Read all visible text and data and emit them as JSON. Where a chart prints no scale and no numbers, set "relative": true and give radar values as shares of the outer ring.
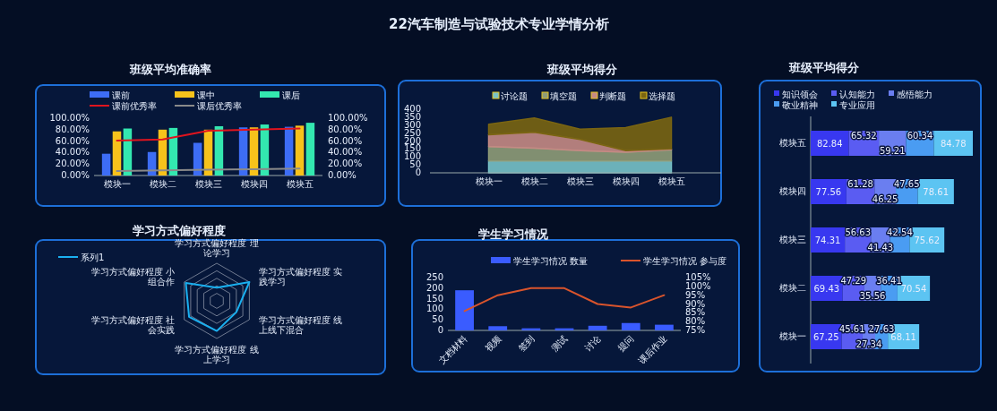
{
  "chart_data": [
    {
      "type": "other",
      "title": "22汽车制造与试验技术专业学情分析"
    },
    {
      "type": "bar",
      "title": "班级平均准确率",
      "categories": [
        "模块一",
        "模块二",
        "模块三",
        "模块四",
        "模块五"
      ],
      "series": [
        {
          "name": "课前",
          "color": "#3d6df5",
          "values": [
            38,
            41,
            57,
            84,
            85
          ]
        },
        {
          "name": "课中",
          "color": "#f7c21b",
          "values": [
            77,
            80,
            80,
            84,
            87
          ]
        },
        {
          "name": "课后",
          "color": "#33e8b0",
          "values": [
            82,
            83,
            86,
            89,
            92
          ]
        },
        {
          "name": "课前优秀率",
          "type": "line",
          "axis": "y2",
          "color": "#e0141e",
          "values": [
            61,
            63,
            78,
            80,
            82
          ]
        },
        {
          "name": "课后优秀率",
          "type": "line",
          "axis": "y2",
          "color": "#8a8a8a",
          "values": [
            8,
            9,
            10,
            11,
            12
          ]
        }
      ],
      "ylim": [
        0,
        100
      ],
      "yticks": [
        {
          "value": 0,
          "label": "0.00%"
        },
        {
          "value": 20,
          "label": "20.00%"
        },
        {
          "value": 40,
          "label": "40.00%"
        },
        {
          "value": 60,
          "label": "60.00%"
        },
        {
          "value": 80,
          "label": "80.00%"
        },
        {
          "value": 100,
          "label": "100.00%"
        }
      ],
      "y2lim": [
        0,
        100
      ],
      "y2ticks": [
        {
          "value": 0,
          "label": "0.00%"
        },
        {
          "value": 20,
          "label": "20.00%"
        },
        {
          "value": 40,
          "label": "40.00%"
        },
        {
          "value": 60,
          "label": "60.00%"
        },
        {
          "value": 80,
          "label": "80.00%"
        },
        {
          "value": 100,
          "label": "100.00%"
        }
      ],
      "legend": "top",
      "marker": "none",
      "grid": false
    },
    {
      "type": "area",
      "stacked": true,
      "title": "班级平均得分",
      "categories": [
        "模块一",
        "模块二",
        "模块三",
        "模块四",
        "模块五"
      ],
      "series": [
        {
          "name": "讨论题",
          "color": "#78c2c8",
          "values": [
            75,
            75,
            75,
            75,
            75
          ]
        },
        {
          "name": "填空题",
          "color": "#8f9c78",
          "values": [
            90,
            80,
            65,
            55,
            70
          ]
        },
        {
          "name": "判断题",
          "color": "#c58a84",
          "values": [
            75,
            100,
            70,
            10,
            5
          ]
        },
        {
          "name": "选择题",
          "color": "#7a6512",
          "values": [
            65,
            90,
            65,
            145,
            200
          ]
        }
      ],
      "ylim": [
        0,
        400
      ],
      "yticks": [
        0,
        50,
        100,
        150,
        200,
        250,
        300,
        350,
        400
      ],
      "legend": "top"
    },
    {
      "type": "bar",
      "orientation": "horizontal",
      "stacked": true,
      "title": "班级平均得分",
      "categories": [
        "模块五",
        "模块四",
        "模块三",
        "模块二",
        "模块一"
      ],
      "series": [
        {
          "name": "知识领会",
          "color": "#3838f0",
          "values": [
            82.84,
            77.56,
            74.31,
            69.43,
            67.25
          ]
        },
        {
          "name": "认知能力",
          "color": "#5a5cf2",
          "values": [
            65.32,
            61.28,
            56.63,
            47.29,
            45.61
          ]
        },
        {
          "name": "感悟能力",
          "color": "#6a7ef0",
          "values": [
            59.21,
            46.25,
            41.43,
            35.56,
            27.34
          ]
        },
        {
          "name": "敬业精神",
          "color": "#4a9cf2",
          "values": [
            60.34,
            47.65,
            42.54,
            36.41,
            27.63
          ]
        },
        {
          "name": "专业应用",
          "color": "#5cc4f2",
          "values": [
            84.78,
            78.61,
            75.62,
            70.54,
            68.11
          ]
        }
      ],
      "data_labels": true,
      "legend": "top"
    },
    {
      "type": "radar",
      "relative": true,
      "title": "学习方式偏好程度",
      "categories": [
        "学习方式偏好程度 理论学习",
        "学习方式偏好程度 实践学习",
        "学习方式偏好程度 线上线下混合",
        "学习方式偏好程度 线上学习",
        "学习方式偏好程度 社会实践",
        "学习方式偏好程度 小组合作"
      ],
      "series": [
        {
          "name": "系列1",
          "color": "#1ab0f0",
          "values": [
            0.35,
            1,
            0.6,
            0.8,
            0.85,
            0.95
          ]
        }
      ],
      "legend": "top left"
    },
    {
      "type": "bar",
      "title": "学生学习情况",
      "categories": [
        "文档材料",
        "视频",
        "签到",
        "测试",
        "讨论",
        "提问",
        "课后作业"
      ],
      "series": [
        {
          "name": "学生学习情况 数量",
          "color": "#3a5cff",
          "values": [
            190,
            20,
            10,
            10,
            22,
            35,
            27
          ]
        },
        {
          "name": "学生学习情况 参与度",
          "type": "line",
          "axis": "y2",
          "color": "#d9542c",
          "values": [
            86,
            95,
            99,
            99,
            90,
            88,
            95
          ]
        }
      ],
      "ylim": [
        0,
        250
      ],
      "yticks": [
        0,
        50,
        100,
        150,
        200,
        250
      ],
      "y2lim": [
        75,
        105
      ],
      "y2ticks": [
        {
          "value": 75,
          "label": "75%"
        },
        {
          "value": 80,
          "label": "80%"
        },
        {
          "value": 85,
          "label": "85%"
        },
        {
          "value": 90,
          "label": "90%"
        },
        {
          "value": 95,
          "label": "95%"
        },
        {
          "value": 100,
          "label": "100%"
        },
        {
          "value": 105,
          "label": "105%"
        }
      ],
      "legend": "top",
      "marker": "none",
      "grid": false
    }
  ]
}
